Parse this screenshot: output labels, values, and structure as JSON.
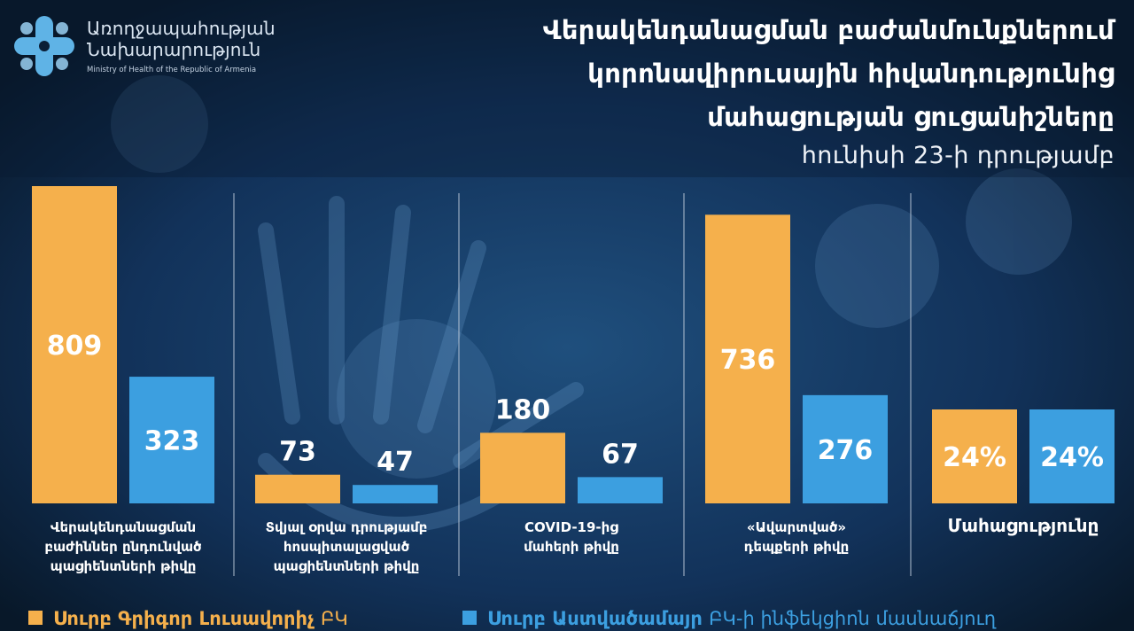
{
  "colors": {
    "orange": "#f5b04c",
    "blue": "#3c9fe0",
    "background": "#0b1e36",
    "divider": "#b8c6d6"
  },
  "logo": {
    "line1": "Առողջապահության",
    "line2": "Նախարարություն",
    "line3": "Ministry of Health of the Republic of Armenia"
  },
  "title": {
    "line1": "Վերակենդանացման բաժանմունքներում",
    "line2": "կորոնավիրուսային հիվանդությունից",
    "line3": "մահացության ցուցանիշները",
    "subtitle": "հունիսի 23-ի դրությամբ"
  },
  "chart_data": {
    "type": "bar",
    "categories": [
      "Վերակենդանացման բաժիններ ընդունված պացիենտների թիվը",
      "Տվյալ օրվա դրությամբ հոսպիտալացված պացիենտների թիվը",
      "COVID-19-ից մահերի թիվը",
      "«Ավարտված» դեպքերի թիվը",
      "Մահացությունը"
    ],
    "category_lines": [
      [
        "Վերակենդանացման",
        "բաժիններ ընդունված",
        "պացիենտների թիվը"
      ],
      [
        "Տվյալ օրվա դրությամբ",
        "հոսպիտալացված",
        "պացիենտների թիվը"
      ],
      [
        "COVID-19-ից",
        "մահերի թիվը"
      ],
      [
        "«Ավարտված»",
        "դեպքերի թիվը"
      ],
      [
        "Մահացությունը"
      ]
    ],
    "series": [
      {
        "name": "Սուրբ Գրիգոր Լուսավորիչ",
        "name_suffix": "ԲԿ",
        "color": "#f5b04c",
        "values": [
          809,
          73,
          180,
          736,
          24
        ],
        "labels": [
          "809",
          "73",
          "180",
          "736",
          "24%"
        ]
      },
      {
        "name": "Սուրբ Աստվածամայր",
        "name_suffix": "ԲԿ-ի ինֆեկցիոն մասնաճյուղ",
        "color": "#3c9fe0",
        "values": [
          323,
          47,
          67,
          276,
          24
        ],
        "labels": [
          "323",
          "47",
          "67",
          "276",
          "24%"
        ]
      }
    ],
    "ylim": [
      0,
      809
    ],
    "legend": "bottom",
    "grid": false
  }
}
